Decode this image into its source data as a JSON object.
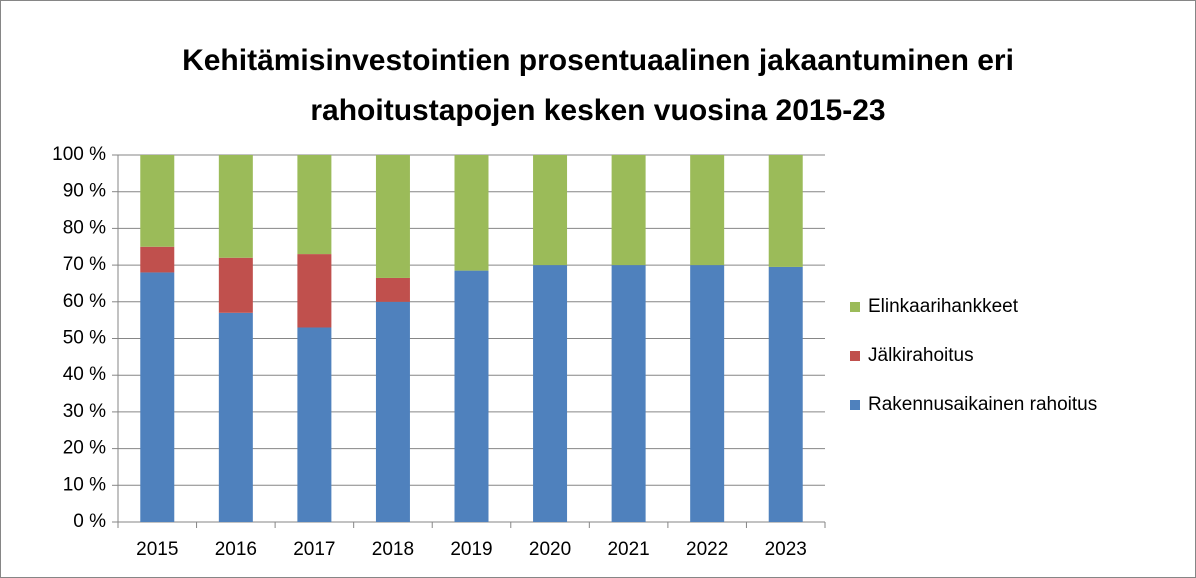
{
  "chart_data": {
    "type": "stacked_bar",
    "title": [
      "Kehitämisinvestointien prosentuaalinen jakaantuminen eri",
      "rahoitustapojen kesken vuosina 2015-23"
    ],
    "categories": [
      "2015",
      "2016",
      "2017",
      "2018",
      "2019",
      "2020",
      "2021",
      "2022",
      "2023"
    ],
    "series": [
      {
        "name": "Rakennusaikainen rahoitus",
        "color": "#4f81bd",
        "values": [
          68,
          57,
          53,
          60,
          68.5,
          70,
          70,
          70,
          69.5
        ]
      },
      {
        "name": "Jälkirahoitus",
        "color": "#c0504d",
        "values": [
          7,
          15,
          20,
          6.5,
          0,
          0,
          0,
          0,
          0
        ]
      },
      {
        "name": "Elinkaarihankkeet",
        "color": "#9bbb59",
        "values": [
          25,
          28,
          27,
          33.5,
          31.5,
          30,
          30,
          30,
          30.5
        ]
      }
    ],
    "ylim": [
      0,
      100
    ],
    "yticks": [
      {
        "value": 0,
        "label": "0 %"
      },
      {
        "value": 10,
        "label": "10 %"
      },
      {
        "value": 20,
        "label": "20 %"
      },
      {
        "value": 30,
        "label": "30 %"
      },
      {
        "value": 40,
        "label": "40 %"
      },
      {
        "value": 50,
        "label": "50 %"
      },
      {
        "value": 60,
        "label": "60 %"
      },
      {
        "value": 70,
        "label": "70 %"
      },
      {
        "value": 80,
        "label": "80 %"
      },
      {
        "value": 90,
        "label": "90 %"
      },
      {
        "value": 100,
        "label": "100 %"
      }
    ],
    "grid": true,
    "legend": "right"
  }
}
